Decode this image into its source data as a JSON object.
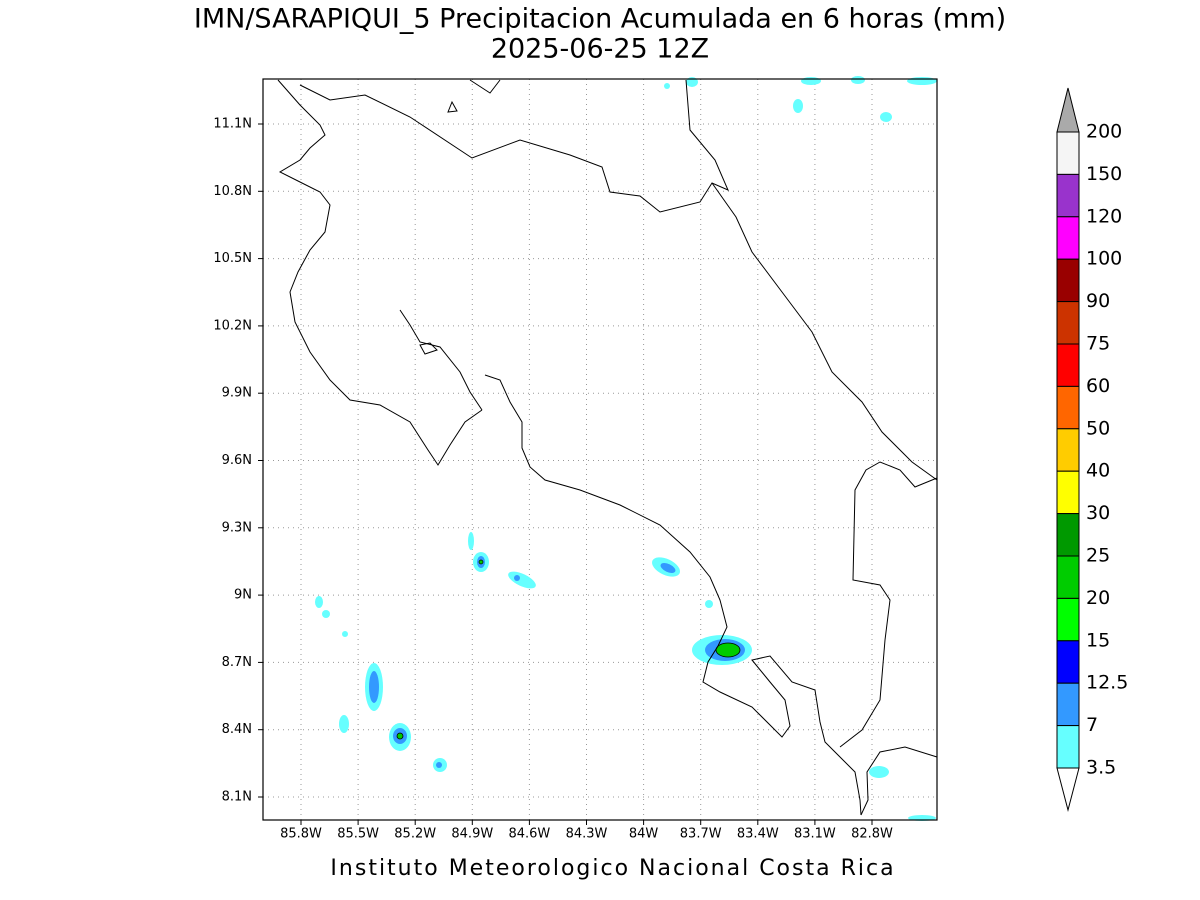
{
  "map": {
    "title": "IMN/SARAPIQUI_5 Precipitacion Acumulada en 6 horas (mm)",
    "subtitle": "2025-06-25 12Z",
    "footer": "Instituto Meteorologico Nacional Costa Rica",
    "xticks": [
      "85.8W",
      "85.5W",
      "85.2W",
      "84.9W",
      "84.6W",
      "84.3W",
      "84W",
      "83.7W",
      "83.4W",
      "83.1W",
      "82.8W"
    ],
    "yticks": [
      "11.1N",
      "10.8N",
      "10.5N",
      "10.2N",
      "9.9N",
      "9.6N",
      "9.3N",
      "9N",
      "8.7N",
      "8.4N",
      "8.1N"
    ],
    "colorbar": {
      "labels": [
        "200",
        "150",
        "120",
        "100",
        "90",
        "75",
        "60",
        "50",
        "40",
        "30",
        "25",
        "20",
        "15",
        "12.5",
        "7",
        "3.5"
      ],
      "colors": [
        "#f5f5f5",
        "#9933cc",
        "#ff00ff",
        "#990000",
        "#cc3300",
        "#ff0000",
        "#ff6600",
        "#ffcc00",
        "#ffff00",
        "#009900",
        "#00cc00",
        "#00ff00",
        "#0000ff",
        "#3399ff",
        "#66ffff"
      ],
      "over_color": "#aaaaaa",
      "under_color": "#ffffff"
    }
  }
}
